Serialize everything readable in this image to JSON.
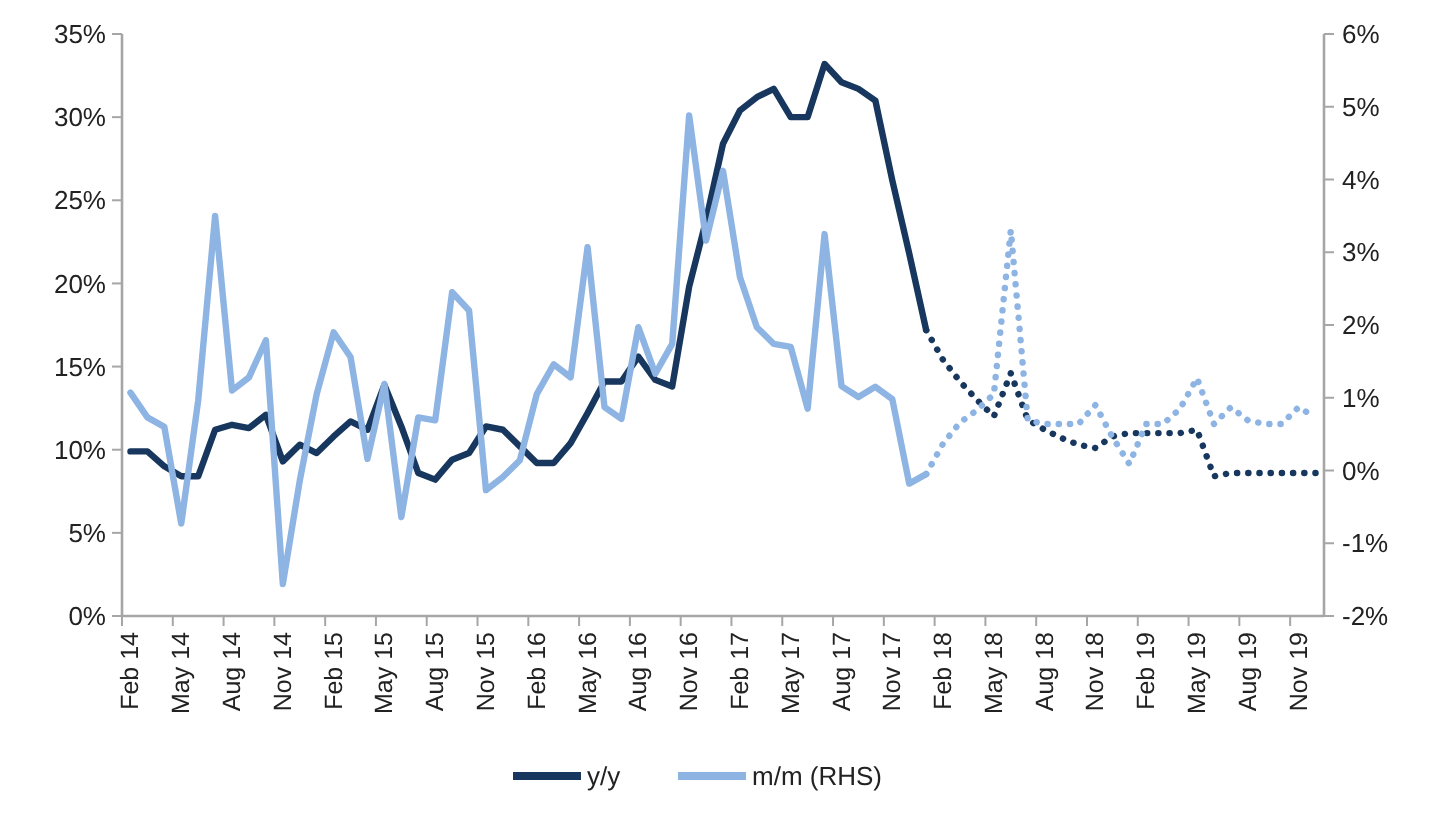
{
  "chart_data": {
    "type": "line",
    "categories": [
      "Feb 14",
      null,
      null,
      "May 14",
      null,
      null,
      "Aug 14",
      null,
      null,
      "Nov 14",
      null,
      null,
      "Feb 15",
      null,
      null,
      "May 15",
      null,
      null,
      "Aug 15",
      null,
      null,
      "Nov 15",
      null,
      null,
      "Feb 16",
      null,
      null,
      "May 16",
      null,
      null,
      "Aug 16",
      null,
      null,
      "Nov 16",
      null,
      null,
      "Feb 17",
      null,
      null,
      "May 17",
      null,
      null,
      "Aug 17",
      null,
      null,
      "Nov 17",
      null,
      null,
      "Feb 18",
      null,
      null,
      "May 18",
      null,
      null,
      "Aug 18",
      null,
      null,
      "Nov 18",
      null,
      null,
      "Feb 19",
      null,
      null,
      "May 19",
      null,
      null,
      "Aug 19",
      null,
      null,
      "Nov 19",
      null
    ],
    "series": [
      {
        "name": "y/y",
        "color": "#17375e",
        "line_style": "solid",
        "values": [
          9.9,
          9.9,
          9.0,
          8.4,
          8.4,
          11.2,
          11.5,
          11.3,
          12.1,
          9.3,
          10.3,
          9.8,
          10.8,
          11.7,
          11.2,
          13.9,
          11.4,
          8.6,
          8.2,
          9.4,
          9.8,
          11.4,
          11.2,
          10.2,
          9.2,
          9.2,
          10.4,
          12.2,
          14.1,
          14.1,
          15.6,
          14.2,
          13.8,
          19.8,
          23.8,
          28.4,
          30.4,
          31.2,
          31.7,
          30.0,
          30.0,
          33.2,
          32.1,
          31.7,
          31.0,
          26.2,
          21.8,
          17.2,
          null,
          null,
          null,
          null,
          null,
          null,
          null,
          null,
          null,
          null,
          null,
          null,
          null,
          null,
          null,
          null,
          null,
          null,
          null,
          null,
          null,
          null,
          null
        ]
      },
      {
        "name": "m/m (RHS)",
        "color": "#8db4e2",
        "axis": "y2",
        "line_style": "solid",
        "values": [
          1.07,
          0.73,
          0.6,
          -0.73,
          0.96,
          3.5,
          1.1,
          1.28,
          1.79,
          -1.56,
          -0.14,
          1.05,
          1.9,
          1.56,
          0.16,
          1.19,
          -0.64,
          0.73,
          0.69,
          2.45,
          2.2,
          -0.27,
          -0.09,
          0.14,
          1.05,
          1.46,
          1.28,
          3.07,
          0.87,
          0.71,
          1.97,
          1.33,
          1.74,
          4.88,
          3.16,
          4.12,
          2.66,
          1.97,
          1.74,
          1.7,
          0.85,
          3.25,
          1.16,
          1.01,
          1.15,
          0.98,
          -0.18,
          -0.05,
          null,
          null,
          null,
          null,
          null,
          null,
          null,
          null,
          null,
          null,
          null,
          null,
          null,
          null,
          null,
          null,
          null,
          null,
          null,
          null,
          null,
          null,
          null
        ]
      },
      {
        "color": "#17375e",
        "line_style": "dotted",
        "values": [
          null,
          null,
          null,
          null,
          null,
          null,
          null,
          null,
          null,
          null,
          null,
          null,
          null,
          null,
          null,
          null,
          null,
          null,
          null,
          null,
          null,
          null,
          null,
          null,
          null,
          null,
          null,
          null,
          null,
          null,
          null,
          null,
          null,
          null,
          null,
          null,
          null,
          null,
          null,
          null,
          null,
          null,
          null,
          null,
          null,
          null,
          null,
          17.2,
          15.4,
          14.1,
          13.0,
          12.0,
          14.6,
          11.8,
          11.2,
          10.7,
          10.3,
          10.1,
          10.8,
          11.0,
          11.0,
          11.0,
          11.0,
          11.2,
          8.4,
          8.6,
          8.6,
          8.6,
          8.6,
          8.6,
          8.6
        ]
      },
      {
        "color": "#8db4e2",
        "axis": "y2",
        "line_style": "dotted",
        "values": [
          null,
          null,
          null,
          null,
          null,
          null,
          null,
          null,
          null,
          null,
          null,
          null,
          null,
          null,
          null,
          null,
          null,
          null,
          null,
          null,
          null,
          null,
          null,
          null,
          null,
          null,
          null,
          null,
          null,
          null,
          null,
          null,
          null,
          null,
          null,
          null,
          null,
          null,
          null,
          null,
          null,
          null,
          null,
          null,
          null,
          null,
          null,
          -0.05,
          0.37,
          0.66,
          0.83,
          1.05,
          3.3,
          0.69,
          0.64,
          0.64,
          0.64,
          0.9,
          0.46,
          0.09,
          0.64,
          0.64,
          0.85,
          1.27,
          0.64,
          0.87,
          0.69,
          0.64,
          0.64,
          0.87,
          0.73
        ]
      }
    ],
    "ylim": [
      0,
      35
    ],
    "yticks": [
      {
        "value": 0,
        "label": "0%"
      },
      {
        "value": 5,
        "label": "5%"
      },
      {
        "value": 10,
        "label": "10%"
      },
      {
        "value": 15,
        "label": "15%"
      },
      {
        "value": 20,
        "label": "20%"
      },
      {
        "value": 25,
        "label": "25%"
      },
      {
        "value": 30,
        "label": "30%"
      },
      {
        "value": 35,
        "label": "35%"
      }
    ],
    "y2lim": [
      -2,
      6
    ],
    "y2ticks": [
      {
        "value": -2,
        "label": "-2%"
      },
      {
        "value": -1,
        "label": "-1%"
      },
      {
        "value": 0,
        "label": "0%"
      },
      {
        "value": 1,
        "label": "1%"
      },
      {
        "value": 2,
        "label": "2%"
      },
      {
        "value": 3,
        "label": "3%"
      },
      {
        "value": 4,
        "label": "4%"
      },
      {
        "value": 5,
        "label": "5%"
      },
      {
        "value": 6,
        "label": "6%"
      }
    ],
    "grid": false,
    "legend": "bottom"
  }
}
